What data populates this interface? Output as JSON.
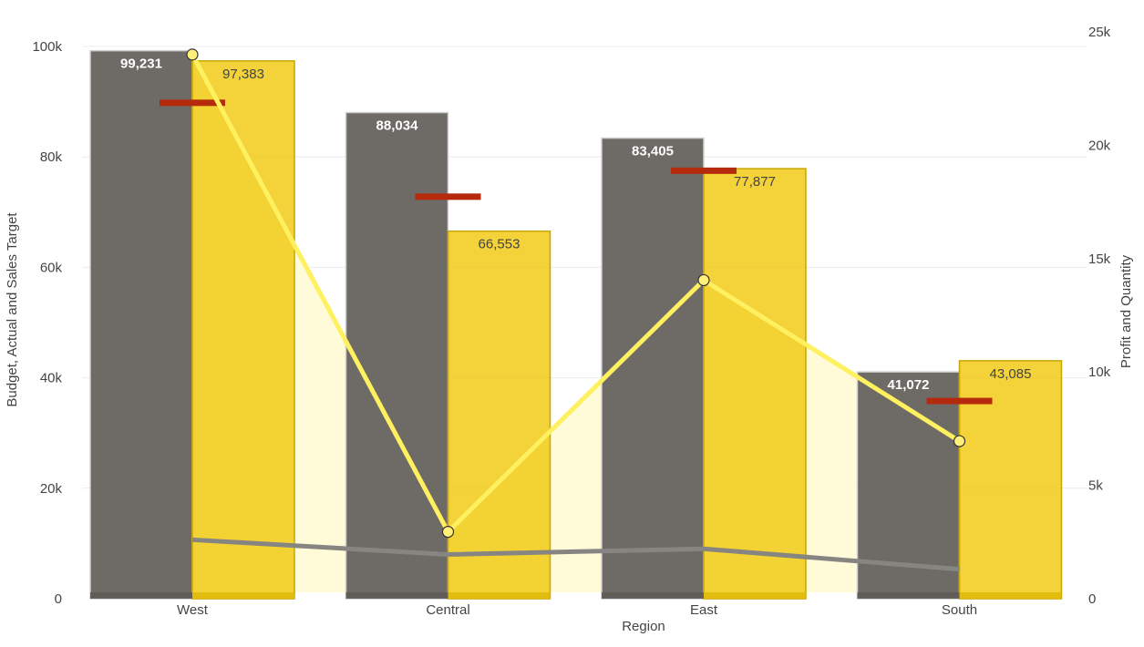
{
  "chart_data": {
    "type": "bar",
    "xlabel": "Region",
    "ylabel_left": "Budget, Actual and Sales Target",
    "ylabel_right": "Profit and Quantity",
    "categories": [
      "West",
      "Central",
      "East",
      "South"
    ],
    "ylim_left": [
      0,
      100000
    ],
    "ylim_right": [
      0,
      25000
    ],
    "yticks_left": [
      "0",
      "20k",
      "40k",
      "60k",
      "80k",
      "100k"
    ],
    "yticks_left_values": [
      0,
      20000,
      40000,
      60000,
      80000,
      100000
    ],
    "yticks_right": [
      "0",
      "5k",
      "10k",
      "15k",
      "20k",
      "25k"
    ],
    "yticks_right_values": [
      0,
      5000,
      10000,
      15000,
      20000,
      25000
    ],
    "grid": true,
    "bars": [
      {
        "values": [
          99231,
          88034,
          83405,
          41072
        ],
        "labels": [
          "99,231",
          "88,034",
          "83,405",
          "41,072"
        ],
        "color": "#6e6b66",
        "label_color": "#ffffff"
      },
      {
        "values": [
          97383,
          66553,
          77877,
          43085
        ],
        "labels": [
          "97,383",
          "66,553",
          "77,877",
          "43,085"
        ],
        "color": "#f0c80f",
        "label_color": "#444444"
      }
    ],
    "targets": {
      "values": [
        89800,
        72800,
        77500,
        35800
      ],
      "color": "#b52a0c"
    },
    "lines": [
      {
        "axis": "right",
        "values": [
          24000,
          2950,
          14050,
          6950
        ],
        "color": "#fff060",
        "marker_fill": "#fff07a",
        "area_fill": "#fffbd6"
      },
      {
        "axis": "right",
        "values": [
          2600,
          1950,
          2200,
          1300
        ],
        "color": "#878582"
      }
    ]
  }
}
